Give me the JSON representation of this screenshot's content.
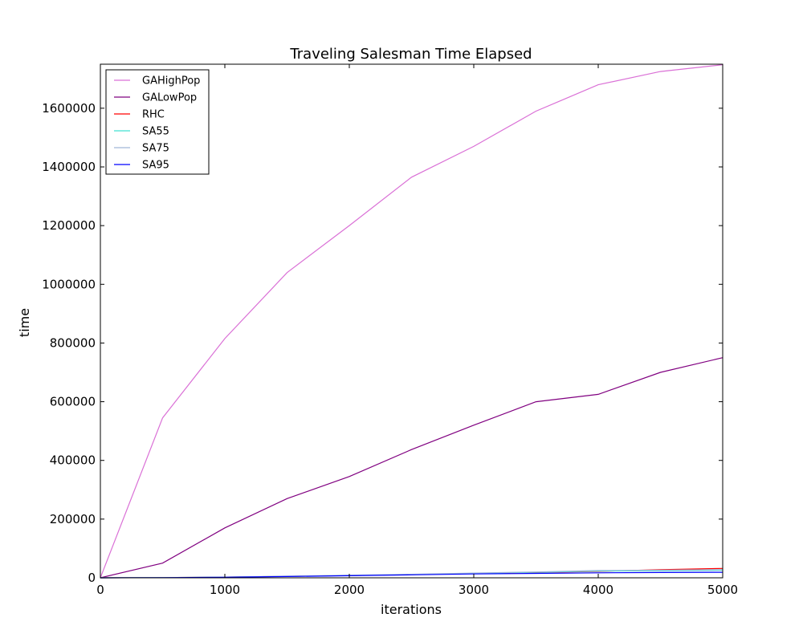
{
  "chart_data": {
    "type": "line",
    "title": "Traveling Salesman Time Elapsed",
    "xlabel": "iterations",
    "ylabel": "time",
    "xlim": [
      0,
      5000
    ],
    "ylim": [
      0,
      1750000
    ],
    "xticks": [
      0,
      1000,
      2000,
      3000,
      4000,
      5000
    ],
    "yticks": [
      0,
      200000,
      400000,
      600000,
      800000,
      1000000,
      1200000,
      1400000,
      1600000
    ],
    "grid": false,
    "legend_position": "top-left",
    "x": [
      0,
      500,
      1000,
      1500,
      2000,
      2500,
      3000,
      3500,
      4000,
      4500,
      5000
    ],
    "series": [
      {
        "name": "GAHighPop",
        "color": "#da70d6",
        "values": [
          0,
          545000,
          815000,
          1040000,
          1200000,
          1365000,
          1470000,
          1590000,
          1680000,
          1725000,
          1748000
        ]
      },
      {
        "name": "GALowPop",
        "color": "#800080",
        "values": [
          0,
          50000,
          170000,
          270000,
          345000,
          437000,
          520000,
          600000,
          625000,
          700000,
          750000
        ]
      },
      {
        "name": "RHC",
        "color": "#ff0000",
        "values": [
          0,
          800,
          2500,
          5000,
          8000,
          11000,
          15000,
          18000,
          22000,
          28000,
          32000
        ]
      },
      {
        "name": "SA55",
        "color": "#40e0d0",
        "values": [
          0,
          800,
          2500,
          5000,
          8000,
          11000,
          15000,
          19000,
          23000,
          24000,
          26000
        ]
      },
      {
        "name": "SA75",
        "color": "#a0b8d8",
        "values": [
          0,
          800,
          2500,
          5500,
          9000,
          12000,
          16000,
          20000,
          25000,
          26000,
          28000
        ]
      },
      {
        "name": "SA95",
        "color": "#0000ff",
        "values": [
          0,
          600,
          2000,
          4500,
          7000,
          10000,
          13000,
          15000,
          17000,
          18000,
          19000
        ]
      }
    ]
  }
}
